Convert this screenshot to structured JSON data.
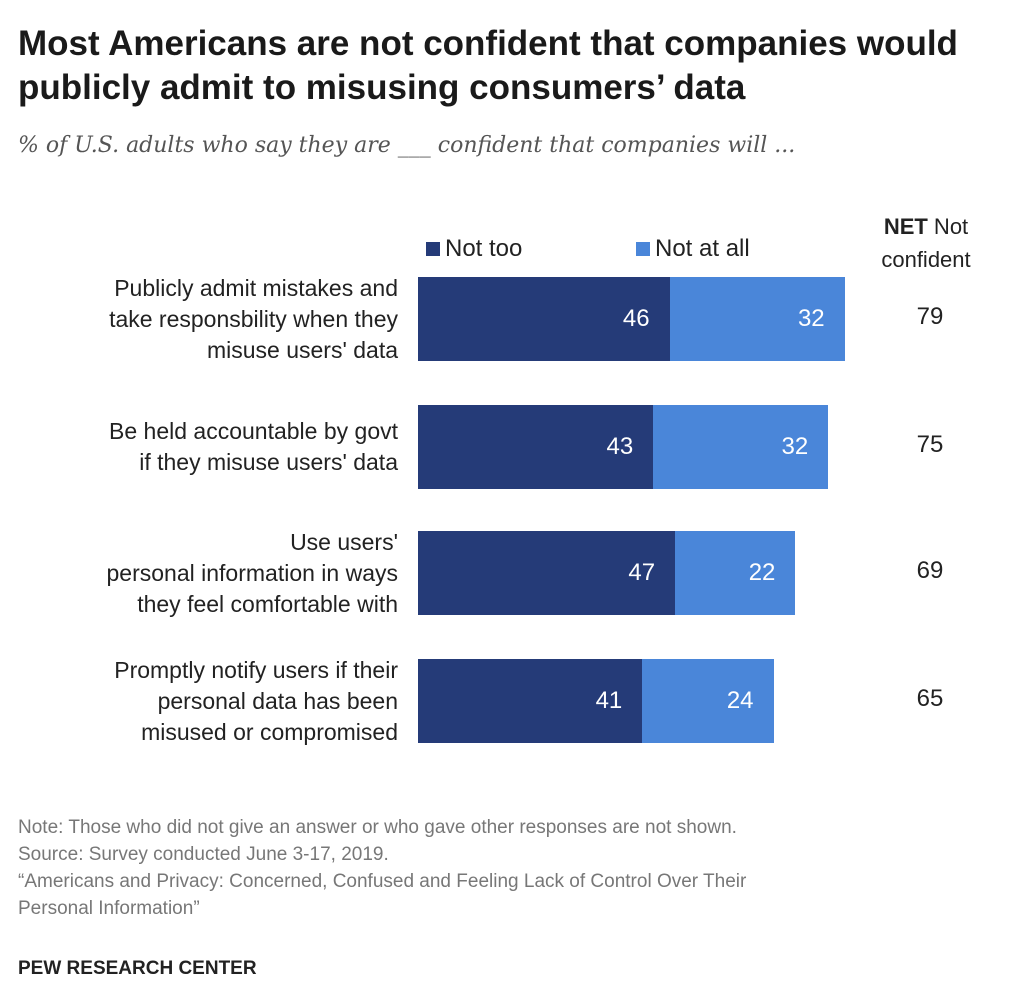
{
  "chart_data": {
    "type": "bar",
    "orientation": "horizontal",
    "stacked": true,
    "title": "Most Americans are not confident that companies would publicly admit to misusing consumers’ data",
    "subtitle": "% of U.S. adults who say they are ___ confident that companies will ...",
    "categories": [
      "Publicly admit mistakes and take responsbility when they misuse users' data",
      "Be held accountable by govt if they misuse users' data",
      "Use users' personal information in ways they feel comfortable with",
      "Promptly notify users if their personal data has been misused or compromised"
    ],
    "category_lines": [
      [
        "Publicly admit mistakes and",
        "take responsbility when they",
        "misuse users' data"
      ],
      [
        "Be held accountable by govt",
        "if they misuse users' data"
      ],
      [
        "Use users'",
        "personal information in ways",
        "they feel comfortable with"
      ],
      [
        "Promptly notify users if their",
        "personal data has been",
        "misused or compromised"
      ]
    ],
    "series": [
      {
        "name": "Not too",
        "color": "#253B78",
        "values": [
          46,
          43,
          47,
          41
        ]
      },
      {
        "name": "Not at all",
        "color": "#4A86D9",
        "values": [
          32,
          32,
          22,
          24
        ]
      }
    ],
    "net": {
      "label_bold": "NET",
      "label_rest": " Not",
      "label_line2": "confident",
      "values": [
        79,
        75,
        69,
        65
      ]
    },
    "legend_position": "top",
    "grid": false
  },
  "notes": {
    "note": "Note: Those who did not give an answer or who gave other responses are not shown.",
    "source": "Source: Survey conducted June 3-17, 2019.",
    "report": "“Americans and Privacy: Concerned, Confused and Feeling Lack of Control Over Their",
    "report2": "Personal Information”",
    "org": "PEW RESEARCH CENTER"
  }
}
